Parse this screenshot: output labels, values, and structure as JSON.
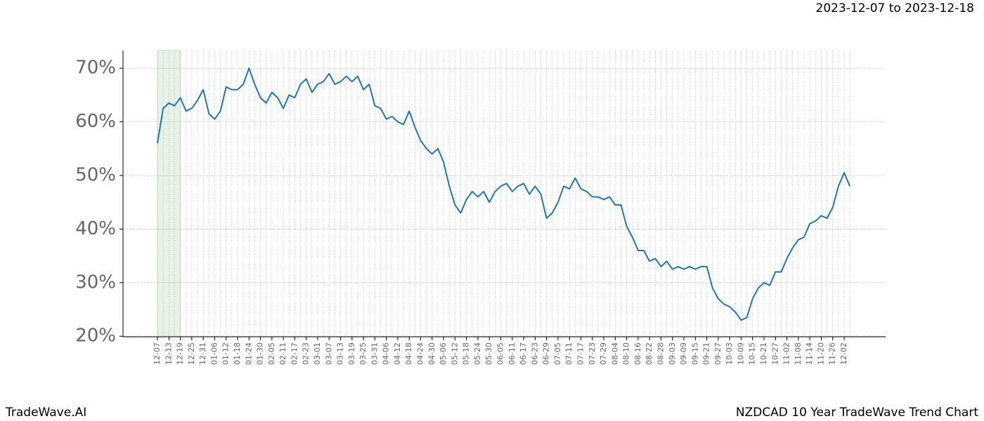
{
  "header": {
    "range": "2023-12-07 to 2023-12-18"
  },
  "footer": {
    "left": "TradeWave.AI",
    "right": "NZDCAD 10 Year TradeWave Trend Chart"
  },
  "chart_data": {
    "type": "line",
    "categories": [
      "12-07",
      null,
      "12-13",
      null,
      "12-19",
      null,
      "12-25",
      null,
      "12-31",
      null,
      "01-06",
      null,
      "01-12",
      null,
      "01-18",
      null,
      "01-24",
      null,
      "01-30",
      null,
      "02-05",
      null,
      "02-11",
      null,
      "02-17",
      null,
      "02-23",
      null,
      "03-01",
      null,
      "03-07",
      null,
      "03-13",
      null,
      "03-19",
      null,
      "03-25",
      null,
      "03-31",
      null,
      "04-06",
      null,
      "04-12",
      null,
      "04-18",
      null,
      "04-24",
      null,
      "04-30",
      null,
      "05-06",
      null,
      "05-12",
      null,
      "05-18",
      null,
      "05-24",
      null,
      "05-30",
      null,
      "06-05",
      null,
      "06-11",
      null,
      "06-17",
      null,
      "06-23",
      null,
      "06-29",
      null,
      "07-05",
      null,
      "07-11",
      null,
      "07-17",
      null,
      "07-23",
      null,
      "07-29",
      null,
      "08-04",
      null,
      "08-10",
      null,
      "08-16",
      null,
      "08-22",
      null,
      "08-28",
      null,
      "09-03",
      null,
      "09-09",
      null,
      "09-15",
      null,
      "09-21",
      null,
      "09-27",
      null,
      "10-03",
      null,
      "10-09",
      null,
      "10-15",
      null,
      "10-21",
      null,
      "10-27",
      null,
      "11-02",
      null,
      "11-08",
      null,
      "11-14",
      null,
      "11-20",
      null,
      "11-26",
      null,
      "12-02",
      null
    ],
    "series": [
      {
        "color": "#1f77b4",
        "values": [
          56,
          62.5,
          63.5,
          63,
          64.5,
          62,
          62.5,
          64,
          66,
          61.5,
          60.5,
          62,
          66.5,
          66,
          66,
          67,
          70,
          67,
          64.5,
          63.5,
          65.5,
          64.5,
          62.5,
          65,
          64.5,
          67,
          68,
          65.5,
          67,
          67.5,
          69,
          67,
          67.5,
          68.5,
          67.5,
          68.5,
          66,
          67,
          63,
          62.5,
          60.5,
          61,
          60,
          59.5,
          62,
          59,
          56.5,
          55,
          54,
          55,
          52.5,
          48,
          44.5,
          43,
          45.5,
          47,
          46,
          47,
          45,
          47,
          48,
          48.5,
          47,
          48,
          48.5,
          46.5,
          48,
          46.5,
          42,
          43,
          45,
          48,
          47.5,
          49.5,
          47.5,
          47,
          46,
          46,
          45.5,
          46,
          44.5,
          44.5,
          40.5,
          38.5,
          36,
          36,
          34,
          34.5,
          33,
          34,
          32.5,
          33,
          32.5,
          33,
          32.5,
          33,
          33,
          29,
          27,
          26,
          25.5,
          24.5,
          23,
          23.5,
          27,
          29,
          30,
          29.5,
          32,
          32,
          34.5,
          36.5,
          38,
          38.5,
          41,
          41.5,
          42.5,
          42,
          44,
          48,
          50.5,
          48
        ]
      }
    ],
    "ylim": [
      19.9,
      73.3
    ],
    "yticks": [
      {
        "value": 20,
        "label": "20%"
      },
      {
        "value": 30,
        "label": "30%"
      },
      {
        "value": 40,
        "label": "40%"
      },
      {
        "value": 50,
        "label": "50%"
      },
      {
        "value": 60,
        "label": "60%"
      },
      {
        "value": 70,
        "label": "70%"
      }
    ],
    "grid": true
  }
}
